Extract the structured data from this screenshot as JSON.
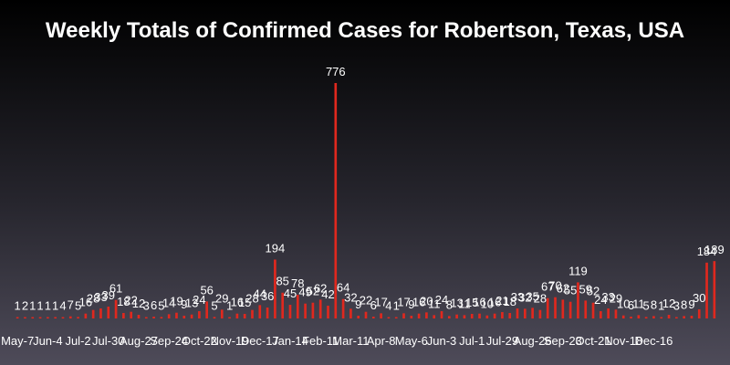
{
  "chart_data": {
    "type": "bar",
    "title": "Weekly Totals of Confirmed Cases for Robertson, Texas, USA",
    "xlabel": "",
    "ylabel": "",
    "ylim": [
      0,
      776
    ],
    "grid": false,
    "bar_color": "#e0281e",
    "x_tick_labels": [
      "May-7",
      "Jun-4",
      "Jul-2",
      "Jul-30",
      "Aug-27",
      "Sep-24",
      "Oct-22",
      "Nov-19",
      "Dec-17",
      "Jan-14",
      "Feb-11",
      "Mar-11",
      "Apr-8",
      "May-6",
      "Jun-3",
      "Jul-1",
      "Jul-29",
      "Aug-26",
      "Sep-23",
      "Oct-21",
      "Nov-18",
      "Dec-16"
    ],
    "x_tick_every": 4,
    "values": [
      1,
      2,
      1,
      1,
      1,
      1,
      4,
      7,
      5,
      16,
      28,
      33,
      39,
      61,
      18,
      22,
      12,
      3,
      6,
      5,
      14,
      19,
      9,
      13,
      24,
      56,
      5,
      29,
      1,
      16,
      15,
      28,
      44,
      36,
      194,
      85,
      45,
      78,
      49,
      52,
      62,
      42,
      776,
      64,
      32,
      9,
      22,
      6,
      17,
      4,
      1,
      17,
      9,
      16,
      20,
      11,
      24,
      8,
      13,
      11,
      15,
      16,
      10,
      16,
      21,
      18,
      33,
      32,
      35,
      28,
      67,
      70,
      62,
      55,
      119,
      59,
      52,
      24,
      33,
      29,
      10,
      6,
      11,
      5,
      8,
      1,
      12,
      3,
      8,
      9,
      30,
      184,
      189
    ]
  }
}
